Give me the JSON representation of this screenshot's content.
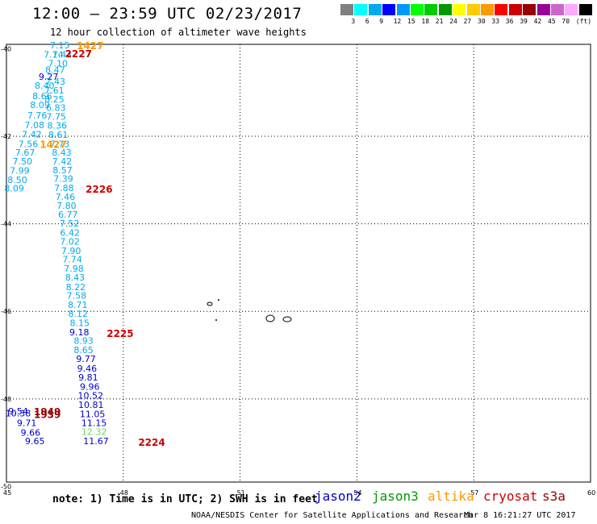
{
  "title": "12:00 – 23:59 UTC 02/23/2017",
  "subtitle": "12 hour collection of altimeter wave heights",
  "note": "note: 1) Time is in UTC; 2) SWH is in feet",
  "credit": "NOAA/NESDIS Center for Satellite Applications and Research",
  "generated": "Mar  8 16:21:27 UTC 2017",
  "satellites": [
    {
      "name": "jason2",
      "color": "#0000cc"
    },
    {
      "name": "jason3",
      "color": "#009900"
    },
    {
      "name": "altika",
      "color": "#ff9900"
    },
    {
      "name": "cryosat",
      "color": "#cc0000"
    },
    {
      "name": "s3a",
      "color": "#990000"
    }
  ],
  "colorbar": {
    "unit": "(ft)",
    "colors": [
      "#808080",
      "#00ffff",
      "#00aaee",
      "#0000ff",
      "#0099ff",
      "#00ff00",
      "#00cc00",
      "#009900",
      "#ffff00",
      "#ffcc00",
      "#ff9900",
      "#ff0000",
      "#cc0000",
      "#990000",
      "#990099",
      "#cc66cc",
      "#ffaaff",
      "#000000"
    ],
    "labels": [
      "3",
      "6",
      "9",
      "12",
      "15",
      "18",
      "21",
      "24",
      "27",
      "30",
      "33",
      "36",
      "39",
      "42",
      "45",
      "70"
    ]
  },
  "axes": {
    "x_ticks": [
      "45",
      "48",
      "51",
      "54",
      "57",
      "60"
    ],
    "y_ticks": [
      "-40",
      "-42",
      "-44",
      "-46",
      "-48",
      "-50"
    ]
  },
  "measurements": [
    {
      "v": "7.15",
      "lon": 46.37,
      "lat": -39.92,
      "c": "#00aaee"
    },
    {
      "v": "7.14",
      "lon": 46.21,
      "lat": -40.13,
      "c": "#00aaee"
    },
    {
      "v": "7.44",
      "lon": 46.43,
      "lat": -40.13,
      "c": "#00aaee"
    },
    {
      "v": "7.10",
      "lon": 46.32,
      "lat": -40.33,
      "c": "#00aaee"
    },
    {
      "v": "8.47",
      "lon": 46.25,
      "lat": -40.48,
      "c": "#00aaee"
    },
    {
      "v": "9.27",
      "lon": 46.08,
      "lat": -40.64,
      "c": "#0000cc"
    },
    {
      "v": "7.43",
      "lon": 46.26,
      "lat": -40.75,
      "c": "#00aaee"
    },
    {
      "v": "8.40",
      "lon": 45.98,
      "lat": -40.84,
      "c": "#00aaee"
    },
    {
      "v": "7.61",
      "lon": 46.23,
      "lat": -40.95,
      "c": "#00aaee"
    },
    {
      "v": "8.66",
      "lon": 45.92,
      "lat": -41.08,
      "c": "#00aaee"
    },
    {
      "v": "8.25",
      "lon": 46.23,
      "lat": -41.15,
      "c": "#00aaee"
    },
    {
      "v": "8.09",
      "lon": 45.86,
      "lat": -41.28,
      "c": "#00aaee"
    },
    {
      "v": "6.83",
      "lon": 46.27,
      "lat": -41.35,
      "c": "#00aaee"
    },
    {
      "v": "7.76",
      "lon": 45.79,
      "lat": -41.52,
      "c": "#00aaee"
    },
    {
      "v": "7.75",
      "lon": 46.28,
      "lat": -41.55,
      "c": "#00aaee"
    },
    {
      "v": "7.08",
      "lon": 45.72,
      "lat": -41.74,
      "c": "#00aaee"
    },
    {
      "v": "8.36",
      "lon": 46.3,
      "lat": -41.75,
      "c": "#00aaee"
    },
    {
      "v": "7.42",
      "lon": 45.65,
      "lat": -41.95,
      "c": "#00aaee"
    },
    {
      "v": "8.61",
      "lon": 46.33,
      "lat": -41.96,
      "c": "#00aaee"
    },
    {
      "v": "7.56",
      "lon": 45.56,
      "lat": -42.17,
      "c": "#00aaee"
    },
    {
      "v": "7.73",
      "lon": 46.37,
      "lat": -42.17,
      "c": "#00aaee"
    },
    {
      "v": "7.67",
      "lon": 45.48,
      "lat": -42.37,
      "c": "#00aaee"
    },
    {
      "v": "8.43",
      "lon": 46.42,
      "lat": -42.37,
      "c": "#00aaee"
    },
    {
      "v": "7.50",
      "lon": 45.41,
      "lat": -42.57,
      "c": "#00aaee"
    },
    {
      "v": "7.42",
      "lon": 46.43,
      "lat": -42.57,
      "c": "#00aaee"
    },
    {
      "v": "7.99",
      "lon": 45.34,
      "lat": -42.78,
      "c": "#00aaee"
    },
    {
      "v": "8.57",
      "lon": 46.44,
      "lat": -42.77,
      "c": "#00aaee"
    },
    {
      "v": "8.50",
      "lon": 45.28,
      "lat": -42.99,
      "c": "#00aaee"
    },
    {
      "v": "7.39",
      "lon": 46.46,
      "lat": -42.97,
      "c": "#00aaee"
    },
    {
      "v": "8.09",
      "lon": 45.2,
      "lat": -43.19,
      "c": "#00aaee"
    },
    {
      "v": "7.88",
      "lon": 46.48,
      "lat": -43.18,
      "c": "#00aaee"
    },
    {
      "v": "7.46",
      "lon": 46.51,
      "lat": -43.38,
      "c": "#00aaee"
    },
    {
      "v": "7.80",
      "lon": 46.54,
      "lat": -43.58,
      "c": "#00aaee"
    },
    {
      "v": "6.77",
      "lon": 46.58,
      "lat": -43.79,
      "c": "#00aaee"
    },
    {
      "v": "7.52",
      "lon": 46.62,
      "lat": -43.99,
      "c": "#00aaee"
    },
    {
      "v": "6.42",
      "lon": 46.63,
      "lat": -44.2,
      "c": "#00aaee"
    },
    {
      "v": "7.02",
      "lon": 46.63,
      "lat": -44.4,
      "c": "#00aaee"
    },
    {
      "v": "7.90",
      "lon": 46.66,
      "lat": -44.61,
      "c": "#00aaee"
    },
    {
      "v": "7.74",
      "lon": 46.69,
      "lat": -44.81,
      "c": "#00aaee"
    },
    {
      "v": "7.98",
      "lon": 46.73,
      "lat": -45.02,
      "c": "#00aaee"
    },
    {
      "v": "8.43",
      "lon": 46.76,
      "lat": -45.22,
      "c": "#00aaee"
    },
    {
      "v": "8.22",
      "lon": 46.78,
      "lat": -45.44,
      "c": "#00aaee"
    },
    {
      "v": "7.58",
      "lon": 46.8,
      "lat": -45.64,
      "c": "#00aaee"
    },
    {
      "v": "8.71",
      "lon": 46.83,
      "lat": -45.85,
      "c": "#00aaee"
    },
    {
      "v": "8.12",
      "lon": 46.84,
      "lat": -46.05,
      "c": "#00aaee"
    },
    {
      "v": "8.15",
      "lon": 46.88,
      "lat": -46.26,
      "c": "#00aaee"
    },
    {
      "v": "9.18",
      "lon": 46.87,
      "lat": -46.47,
      "c": "#0000cc"
    },
    {
      "v": "8.93",
      "lon": 46.98,
      "lat": -46.67,
      "c": "#00aaee"
    },
    {
      "v": "8.65",
      "lon": 46.98,
      "lat": -46.88,
      "c": "#00aaee"
    },
    {
      "v": "9.77",
      "lon": 47.04,
      "lat": -47.08,
      "c": "#0000cc"
    },
    {
      "v": "9.46",
      "lon": 47.07,
      "lat": -47.3,
      "c": "#0000cc"
    },
    {
      "v": "9.81",
      "lon": 47.1,
      "lat": -47.51,
      "c": "#0000cc"
    },
    {
      "v": "9.96",
      "lon": 47.14,
      "lat": -47.72,
      "c": "#0000cc"
    },
    {
      "v": "10.52",
      "lon": 47.16,
      "lat": -47.92,
      "c": "#0000cc"
    },
    {
      "v": "10.81",
      "lon": 47.17,
      "lat": -48.13,
      "c": "#0000cc"
    },
    {
      "v": "11.05",
      "lon": 47.21,
      "lat": -48.34,
      "c": "#0000cc"
    },
    {
      "v": "11.15",
      "lon": 47.25,
      "lat": -48.55,
      "c": "#0000cc"
    },
    {
      "v": "12.32",
      "lon": 47.25,
      "lat": -48.75,
      "c": "#66dd66"
    },
    {
      "v": "11.67",
      "lon": 47.3,
      "lat": -48.96,
      "c": "#0000cc"
    },
    {
      "v": "9.54",
      "lon": 45.3,
      "lat": -48.28,
      "c": "#0000cc"
    },
    {
      "v": "10.38",
      "lon": 45.3,
      "lat": -48.33,
      "c": "#0000cc"
    },
    {
      "v": "9.71",
      "lon": 45.52,
      "lat": -48.55,
      "c": "#0000cc"
    },
    {
      "v": "9.66",
      "lon": 45.62,
      "lat": -48.77,
      "c": "#0000cc"
    },
    {
      "v": "9.65",
      "lon": 45.73,
      "lat": -48.96,
      "c": "#0000cc"
    }
  ],
  "times": [
    {
      "v": "1427",
      "lon": 47.15,
      "lat": -39.92,
      "c": "#ff9900"
    },
    {
      "v": "2227",
      "lon": 46.85,
      "lat": -40.1,
      "c": "#cc0000"
    },
    {
      "v": "1427",
      "lon": 46.2,
      "lat": -42.17,
      "c": "#ff9900"
    },
    {
      "v": "2226",
      "lon": 47.38,
      "lat": -43.2,
      "c": "#cc0000"
    },
    {
      "v": "2225",
      "lon": 47.92,
      "lat": -46.49,
      "c": "#cc0000"
    },
    {
      "v": "1949",
      "lon": 46.05,
      "lat": -48.28,
      "c": "#990000"
    },
    {
      "v": "1939",
      "lon": 46.05,
      "lat": -48.34,
      "c": "#990000"
    },
    {
      "v": "2224",
      "lon": 48.73,
      "lat": -48.98,
      "c": "#cc0000"
    }
  ]
}
